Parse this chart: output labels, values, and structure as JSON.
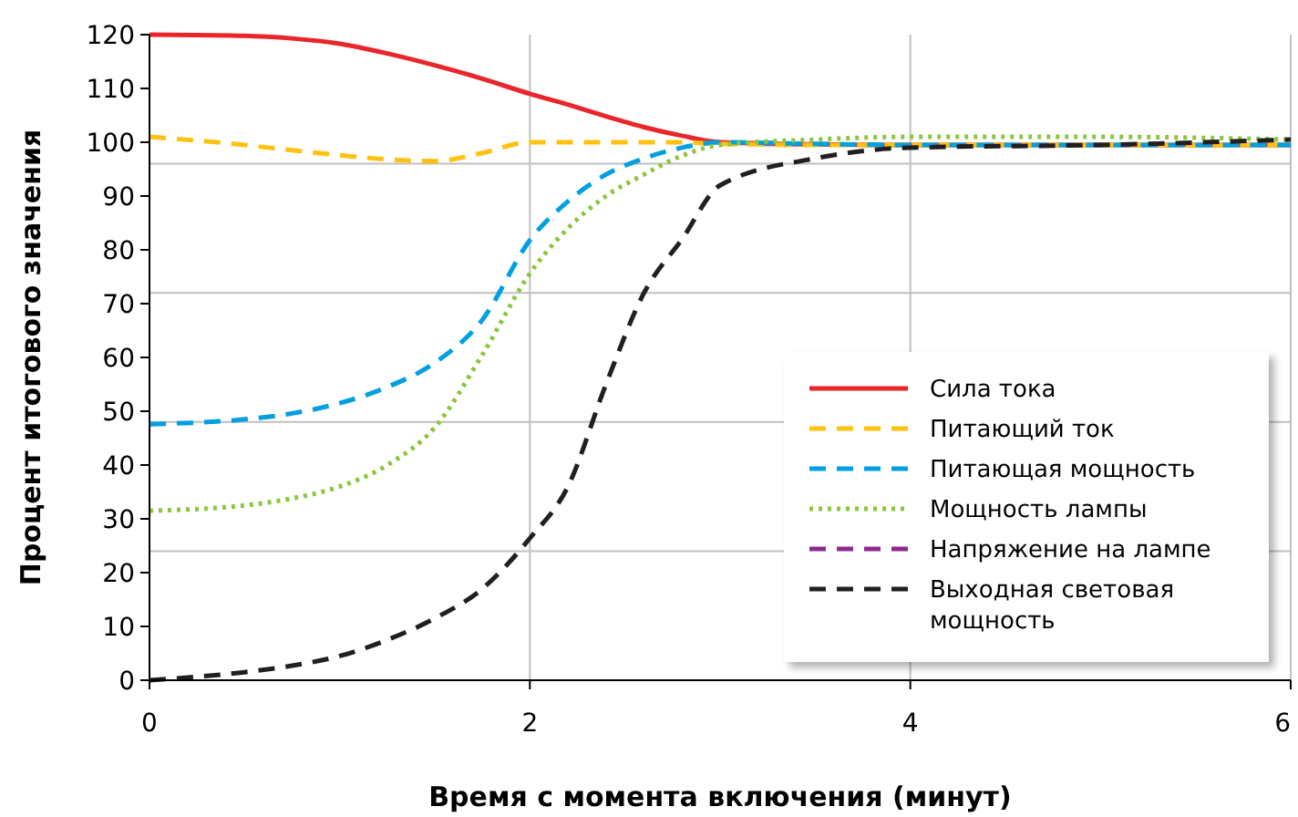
{
  "chart_data": {
    "type": "line",
    "xlabel": "Время с момента включения (минут)",
    "ylabel": "Процент итогового значения",
    "xlim": [
      0,
      6
    ],
    "xticks": [
      0,
      2,
      4,
      6
    ],
    "ylim": [
      0,
      120
    ],
    "yticks": [
      0,
      10,
      20,
      30,
      40,
      50,
      60,
      70,
      80,
      90,
      100,
      110,
      120
    ],
    "grid": "x",
    "legend": "bottom right",
    "ref_lines": [
      {
        "axis": "y",
        "value": 24,
        "color": "#c0c0c0"
      },
      {
        "axis": "y",
        "value": 48,
        "color": "#c0c0c0"
      },
      {
        "axis": "y",
        "value": 72,
        "color": "#c0c0c0"
      },
      {
        "axis": "y",
        "value": 96,
        "color": "#c0c0c0"
      }
    ],
    "x": [
      0,
      0.5,
      0.75,
      1.0,
      1.25,
      1.5,
      1.75,
      2.0,
      2.2,
      2.4,
      2.6,
      2.8,
      3.0,
      3.5,
      4.0,
      5.0,
      6.0
    ],
    "series": [
      {
        "name": "Сила тока",
        "color": "#e8262b",
        "line_style": "solid",
        "values": [
          120,
          119.8,
          119.3,
          118.3,
          116.5,
          114.3,
          111.8,
          109,
          107,
          104.8,
          102.8,
          101.2,
          100,
          99.6,
          99.5,
          99.5,
          99.5
        ]
      },
      {
        "name": "Питающий ток",
        "color": "#ffc20e",
        "line_style": "dashed",
        "values": [
          101,
          99.5,
          98.5,
          97.6,
          96.8,
          96.5,
          98,
          100,
          100,
          100,
          100,
          100,
          99.7,
          99.5,
          99.5,
          99.5,
          99.5
        ]
      },
      {
        "name": "Питающая мощность",
        "color": "#00a0e0",
        "line_style": "dashed",
        "values": [
          47.6,
          48.5,
          49.6,
          51.5,
          54.5,
          59,
          67,
          81.8,
          89,
          94,
          97,
          99,
          100,
          99.7,
          99.5,
          99.5,
          99.5
        ]
      },
      {
        "name": "Мощность лампы",
        "color": "#8cc63f",
        "line_style": "dotted",
        "values": [
          31.5,
          32.5,
          33.8,
          36,
          40,
          47,
          60.5,
          75.6,
          84,
          90,
          94,
          97.5,
          99.5,
          100.5,
          101,
          101,
          100.5
        ]
      },
      {
        "name": "Напряжение на лампе",
        "color": "#8e2a8f",
        "line_style": "dashed",
        "values": [
          null,
          null,
          null,
          null,
          null,
          null,
          null,
          null,
          null,
          null,
          null,
          null,
          null,
          null,
          null,
          null,
          null
        ]
      },
      {
        "name": "Выходная световая мощность",
        "color": "#231f20",
        "line_style": "dashed",
        "values": [
          0,
          1.5,
          2.7,
          4.5,
          7.5,
          11.5,
          17,
          26.4,
          36,
          55,
          72,
          82,
          92,
          97,
          99,
          99.5,
          100.5
        ]
      }
    ]
  }
}
